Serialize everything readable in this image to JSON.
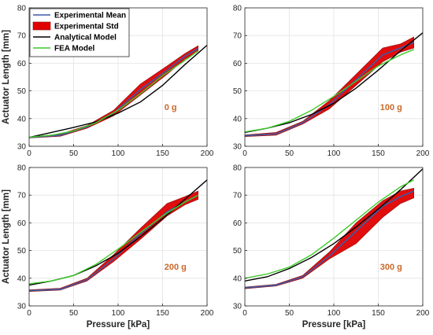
{
  "chart_data": [
    {
      "type": "line",
      "annotation": "0 g",
      "ylabel": "Actuator Length [mm]",
      "xlabel": "",
      "xlim": [
        0,
        200
      ],
      "ylim": [
        30,
        80
      ],
      "xticks": [
        0,
        50,
        100,
        150,
        200
      ],
      "yticks": [
        30,
        40,
        50,
        60,
        70,
        80
      ],
      "grid": true,
      "series": [
        {
          "name": "Experimental Mean",
          "type": "line",
          "x": [
            0,
            35,
            65,
            95,
            125,
            155,
            175,
            190
          ],
          "y": [
            33.2,
            34.0,
            37.0,
            42.0,
            50.5,
            57.5,
            62.5,
            65.3
          ]
        },
        {
          "name": "Experimental Std",
          "type": "band",
          "x": [
            0,
            35,
            65,
            95,
            125,
            155,
            175,
            190
          ],
          "lower": [
            33.0,
            33.6,
            36.5,
            41.0,
            48.5,
            56.0,
            61.5,
            64.3
          ],
          "upper": [
            33.4,
            34.4,
            37.5,
            43.0,
            52.5,
            59.0,
            63.5,
            66.3
          ]
        },
        {
          "name": "Analytical Model",
          "type": "line",
          "x": [
            0,
            25,
            50,
            75,
            100,
            125,
            150,
            175,
            200
          ],
          "y": [
            33.2,
            35.0,
            36.8,
            38.8,
            42.0,
            46.0,
            52.0,
            59.5,
            66.5
          ]
        },
        {
          "name": "FEA Model",
          "type": "line",
          "x": [
            0,
            25,
            50,
            75,
            100,
            125,
            150,
            175,
            190
          ],
          "y": [
            33.3,
            34.0,
            35.5,
            38.5,
            43.0,
            49.0,
            55.5,
            61.0,
            64.5
          ]
        }
      ],
      "legend": {
        "position": "top-left"
      }
    },
    {
      "type": "line",
      "annotation": "100 g",
      "ylabel": "",
      "xlabel": "",
      "xlim": [
        0,
        200
      ],
      "ylim": [
        30,
        80
      ],
      "xticks": [
        0,
        50,
        100,
        150,
        200
      ],
      "yticks": [
        30,
        40,
        50,
        60,
        70,
        80
      ],
      "grid": true,
      "series": [
        {
          "name": "Experimental Mean",
          "type": "line",
          "x": [
            0,
            35,
            65,
            95,
            125,
            155,
            175,
            190
          ],
          "y": [
            33.8,
            34.5,
            38.5,
            45.0,
            54.0,
            63.0,
            65.5,
            67.5
          ]
        },
        {
          "name": "Experimental Std",
          "type": "band",
          "x": [
            0,
            35,
            65,
            95,
            125,
            155,
            175,
            190
          ],
          "lower": [
            33.5,
            34.0,
            38.0,
            43.5,
            52.0,
            60.5,
            64.0,
            65.5
          ]
        },
        {
          "name": "Analytical Model",
          "type": "line",
          "x": [
            0,
            25,
            50,
            75,
            100,
            125,
            150,
            175,
            200
          ],
          "y": [
            35.0,
            36.5,
            38.5,
            41.5,
            45.5,
            51.0,
            57.5,
            64.5,
            71.0
          ]
        },
        {
          "name": "FEA Model",
          "type": "line",
          "x": [
            0,
            25,
            50,
            75,
            100,
            125,
            150,
            175,
            190
          ],
          "y": [
            35.2,
            36.5,
            39.0,
            43.0,
            48.0,
            53.5,
            59.0,
            63.0,
            65.0
          ]
        }
      ]
    },
    {
      "type": "line",
      "annotation": "200 g",
      "ylabel": "Actuator Length [mm]",
      "xlabel": "Pressure [kPa]",
      "xlim": [
        0,
        200
      ],
      "ylim": [
        30,
        80
      ],
      "xticks": [
        0,
        50,
        100,
        150,
        200
      ],
      "yticks": [
        30,
        40,
        50,
        60,
        70,
        80
      ],
      "grid": true,
      "series": [
        {
          "name": "Experimental Mean",
          "type": "line",
          "x": [
            0,
            35,
            65,
            95,
            125,
            155,
            175,
            190
          ],
          "y": [
            35.5,
            36.0,
            39.5,
            47.0,
            56.0,
            64.0,
            67.5,
            70.0
          ]
        },
        {
          "name": "Experimental Std",
          "type": "band",
          "x": [
            0,
            35,
            65,
            95,
            125,
            155,
            175,
            190
          ],
          "lower": [
            35.2,
            35.7,
            39.0,
            46.0,
            54.0,
            62.5,
            66.5,
            68.5
          ],
          "upper": [
            35.8,
            36.4,
            40.0,
            48.5,
            58.0,
            67.0,
            69.5,
            71.5
          ]
        },
        {
          "name": "Analytical Model",
          "type": "line",
          "x": [
            0,
            25,
            50,
            75,
            100,
            125,
            150,
            175,
            200
          ],
          "y": [
            37.5,
            39.0,
            41.0,
            44.5,
            49.0,
            55.0,
            61.5,
            68.5,
            75.5
          ]
        },
        {
          "name": "FEA Model",
          "type": "line",
          "x": [
            0,
            25,
            50,
            75,
            100,
            125,
            150,
            175,
            190
          ],
          "y": [
            38.0,
            39.0,
            41.0,
            45.0,
            50.5,
            56.5,
            62.5,
            67.5,
            70.0
          ]
        }
      ]
    },
    {
      "type": "line",
      "annotation": "300 g",
      "ylabel": "",
      "xlabel": "Pressure [kPa]",
      "xlim": [
        0,
        200
      ],
      "ylim": [
        30,
        80
      ],
      "xticks": [
        0,
        50,
        100,
        150,
        200
      ],
      "yticks": [
        30,
        40,
        50,
        60,
        70,
        80
      ],
      "grid": true,
      "series": [
        {
          "name": "Experimental Mean",
          "type": "line",
          "x": [
            0,
            35,
            65,
            95,
            125,
            155,
            175,
            190
          ],
          "y": [
            36.5,
            37.5,
            40.5,
            48.0,
            57.0,
            66.0,
            69.5,
            71.5
          ]
        },
        {
          "name": "Experimental Std",
          "type": "band",
          "x": [
            0,
            35,
            65,
            95,
            125,
            155,
            175,
            190
          ],
          "lower": [
            36.2,
            37.2,
            40.0,
            47.0,
            52.5,
            62.0,
            67.0,
            69.0
          ],
          "upper": [
            36.8,
            37.8,
            41.0,
            49.5,
            60.0,
            68.0,
            71.5,
            72.5
          ]
        },
        {
          "name": "Analytical Model",
          "type": "line",
          "x": [
            0,
            25,
            50,
            75,
            100,
            125,
            150,
            175,
            200
          ],
          "y": [
            39.0,
            40.5,
            43.5,
            47.5,
            52.5,
            58.5,
            65.0,
            72.0,
            79.5
          ]
        },
        {
          "name": "FEA Model",
          "type": "line",
          "x": [
            0,
            25,
            50,
            75,
            100,
            125,
            150,
            175,
            190
          ],
          "y": [
            40.0,
            41.5,
            44.0,
            48.5,
            54.5,
            61.0,
            67.5,
            73.0,
            75.5
          ]
        }
      ]
    }
  ],
  "legend_entries": [
    {
      "label": "Experimental Mean",
      "color": "#3b5ba5",
      "kind": "line"
    },
    {
      "label": "Experimental Std",
      "color": "#e00000",
      "kind": "patch"
    },
    {
      "label": "Analytical Model",
      "color": "#000000",
      "kind": "line"
    },
    {
      "label": "FEA Model",
      "color": "#3ccc28",
      "kind": "line"
    }
  ],
  "colors": {
    "mean": "#3b5ba5",
    "std_fill": "#e00000",
    "std_edge": "#8b1010",
    "analytical": "#000000",
    "fea": "#3ccc28",
    "annotation": "#c8692a",
    "grid": "#e3e3e3",
    "axis": "#262626"
  }
}
